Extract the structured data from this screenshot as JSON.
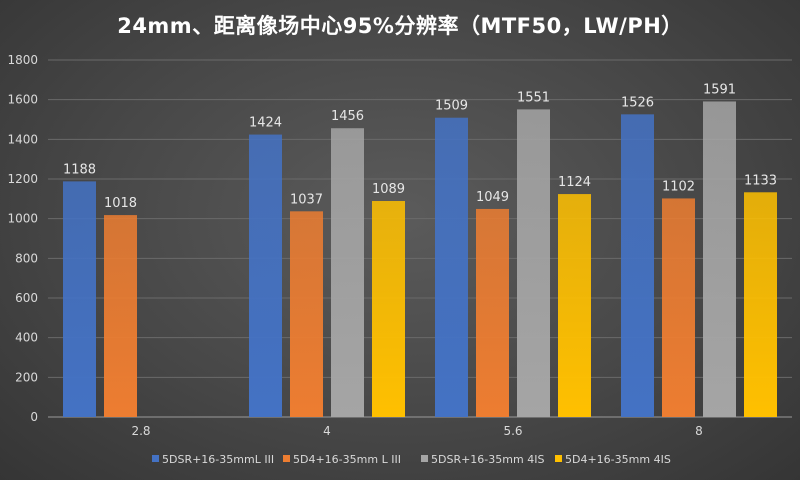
{
  "chart_data": {
    "type": "bar",
    "title": "24mm、距离像场中心95%分辨率（MTF50，LW/PH）",
    "xlabel": "",
    "ylabel": "",
    "categories": [
      "2.8",
      "4",
      "5.6",
      "8"
    ],
    "ylim": [
      0,
      1800
    ],
    "yticks": [
      "0",
      "200",
      "400",
      "600",
      "800",
      "1000",
      "1200",
      "1400",
      "1600",
      "1800"
    ],
    "grid": true,
    "legend_position": "bottom",
    "series": [
      {
        "name": "5DSR+16-35mmL III",
        "color": "#4472c4",
        "values": [
          1188,
          1424,
          1509,
          1526
        ]
      },
      {
        "name": "5D4+16-35mm L III",
        "color": "#ed7d31",
        "values": [
          1018,
          1037,
          1049,
          1102
        ]
      },
      {
        "name": "5DSR+16-35mm 4IS",
        "color": "#a5a5a5",
        "values": [
          null,
          1456,
          1551,
          1591
        ]
      },
      {
        "name": "5D4+16-35mm 4IS",
        "color": "#ffc000",
        "values": [
          null,
          1089,
          1124,
          1133
        ]
      }
    ]
  }
}
